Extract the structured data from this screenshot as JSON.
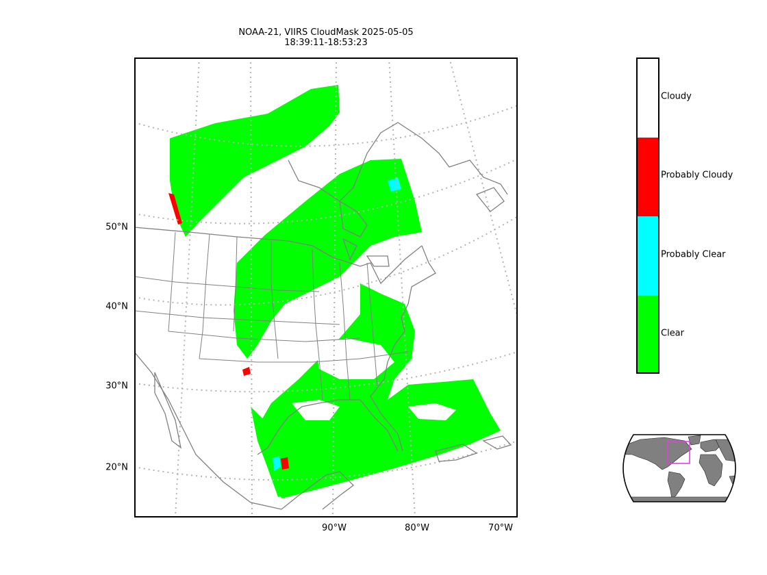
{
  "title": {
    "line1": "NOAA-21, VIIRS CloudMask 2025-05-05",
    "line2": "18:39:11-18:53:23"
  },
  "map": {
    "lat_labels": [
      "50°N",
      "40°N",
      "30°N",
      "20°N"
    ],
    "lon_labels": [
      "90°W",
      "80°W",
      "70°W"
    ],
    "colors": {
      "clear": "#00ff00",
      "probably_clear": "#00ffff",
      "probably_cloudy": "#ff0000",
      "cloudy": "#ffffff",
      "coastline": "#808080",
      "gridline": "#b3b3b3"
    }
  },
  "legend": {
    "classes": [
      {
        "label": "Cloudy",
        "color": "#ffffff"
      },
      {
        "label": "Probably Cloudy",
        "color": "#ff0000"
      },
      {
        "label": "Probably Clear",
        "color": "#00ffff"
      },
      {
        "label": "Clear",
        "color": "#00ff00"
      }
    ]
  },
  "inset": {
    "land_color": "#808080",
    "ocean_color": "#ffffff",
    "highlight_color": "#e040e0"
  }
}
